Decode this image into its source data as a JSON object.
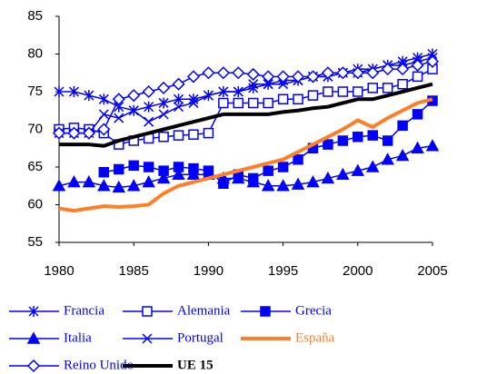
{
  "chart_data": {
    "type": "line",
    "x": [
      1980,
      1981,
      1982,
      1983,
      1984,
      1985,
      1986,
      1987,
      1988,
      1989,
      1990,
      1991,
      1992,
      1993,
      1994,
      1995,
      1996,
      1997,
      1998,
      1999,
      2000,
      2001,
      2002,
      2003,
      2004,
      2005
    ],
    "xlim": [
      1980,
      2005
    ],
    "xticks": [
      1980,
      1985,
      1990,
      1995,
      2000,
      2005
    ],
    "ylim": [
      55,
      85
    ],
    "yticks": [
      55,
      60,
      65,
      70,
      75,
      80,
      85
    ],
    "series": [
      {
        "name": "Francia",
        "color": "#0000ff",
        "marker": "asterisk",
        "values": [
          75,
          75,
          74.5,
          74,
          73,
          72.5,
          73,
          73.5,
          74,
          74,
          74.5,
          75,
          75,
          75.5,
          76,
          76.5,
          76.5,
          77,
          77,
          77.5,
          78,
          78,
          78.5,
          79,
          79.5,
          80
        ]
      },
      {
        "name": "Alemania",
        "color": "#0000ff",
        "marker": "open-square",
        "values": [
          70,
          70.2,
          70,
          69.5,
          68,
          68.5,
          68.8,
          69,
          69.2,
          69.3,
          69.5,
          73.5,
          73.5,
          73.5,
          73.5,
          74,
          74,
          74.5,
          75,
          75,
          75,
          75.5,
          75.5,
          76,
          77,
          78
        ]
      },
      {
        "name": "Grecia",
        "color": "#0000ff",
        "marker": "square",
        "values": [
          null,
          null,
          null,
          64.3,
          64.7,
          65.2,
          65,
          64.5,
          65,
          64.8,
          64.5,
          62.8,
          64,
          63.5,
          64.5,
          65,
          66,
          67.5,
          68,
          68.5,
          69,
          69.2,
          68.5,
          70.5,
          72,
          73.8
        ]
      },
      {
        "name": "Italia",
        "color": "#0000ff",
        "marker": "triangle",
        "values": [
          62.5,
          63,
          63,
          62.5,
          62.3,
          62.5,
          63,
          63.5,
          64,
          64,
          64,
          63.5,
          63.5,
          63,
          62.5,
          62.5,
          62.7,
          63,
          63.5,
          64,
          64.5,
          65,
          66,
          66.5,
          67.5,
          67.8
        ]
      },
      {
        "name": "Portugal",
        "color": "#0000ff",
        "marker": "x",
        "values": [
          69.5,
          69.5,
          69.5,
          72,
          71.5,
          72.5,
          71,
          72,
          73,
          73.5,
          74.5,
          75,
          75,
          76,
          76,
          76,
          76.5,
          77,
          77,
          77.5,
          77.5,
          78,
          78.5,
          78.5,
          79,
          79.5
        ]
      },
      {
        "name": "España",
        "color": "#ff7f27",
        "marker": "none",
        "values": [
          59.5,
          59.2,
          59.5,
          59.8,
          59.7,
          59.8,
          60,
          61.5,
          62.5,
          63,
          63.5,
          64,
          64.5,
          65,
          65.5,
          66,
          67,
          68,
          69,
          70,
          71.2,
          70.3,
          71.5,
          72.5,
          73.5,
          74
        ]
      },
      {
        "name": "Reino Unido",
        "color": "#0000ff",
        "marker": "diamond",
        "values": [
          69.5,
          69.5,
          69.5,
          70,
          74,
          74.5,
          75,
          75.5,
          76,
          77,
          77.5,
          77.5,
          77.5,
          77.3,
          77,
          77,
          77,
          77,
          77.5,
          77.5,
          77.5,
          77.5,
          78,
          78,
          78.5,
          79
        ]
      },
      {
        "name": "UE 15",
        "color": "#000000",
        "marker": "none",
        "values": [
          68,
          68,
          68,
          67.8,
          68.5,
          69,
          69.5,
          70,
          70.5,
          71,
          71.5,
          72,
          72,
          72,
          72,
          72.3,
          72.5,
          72.8,
          73,
          73.5,
          74,
          74,
          74.5,
          75,
          75.5,
          76
        ]
      }
    ]
  }
}
